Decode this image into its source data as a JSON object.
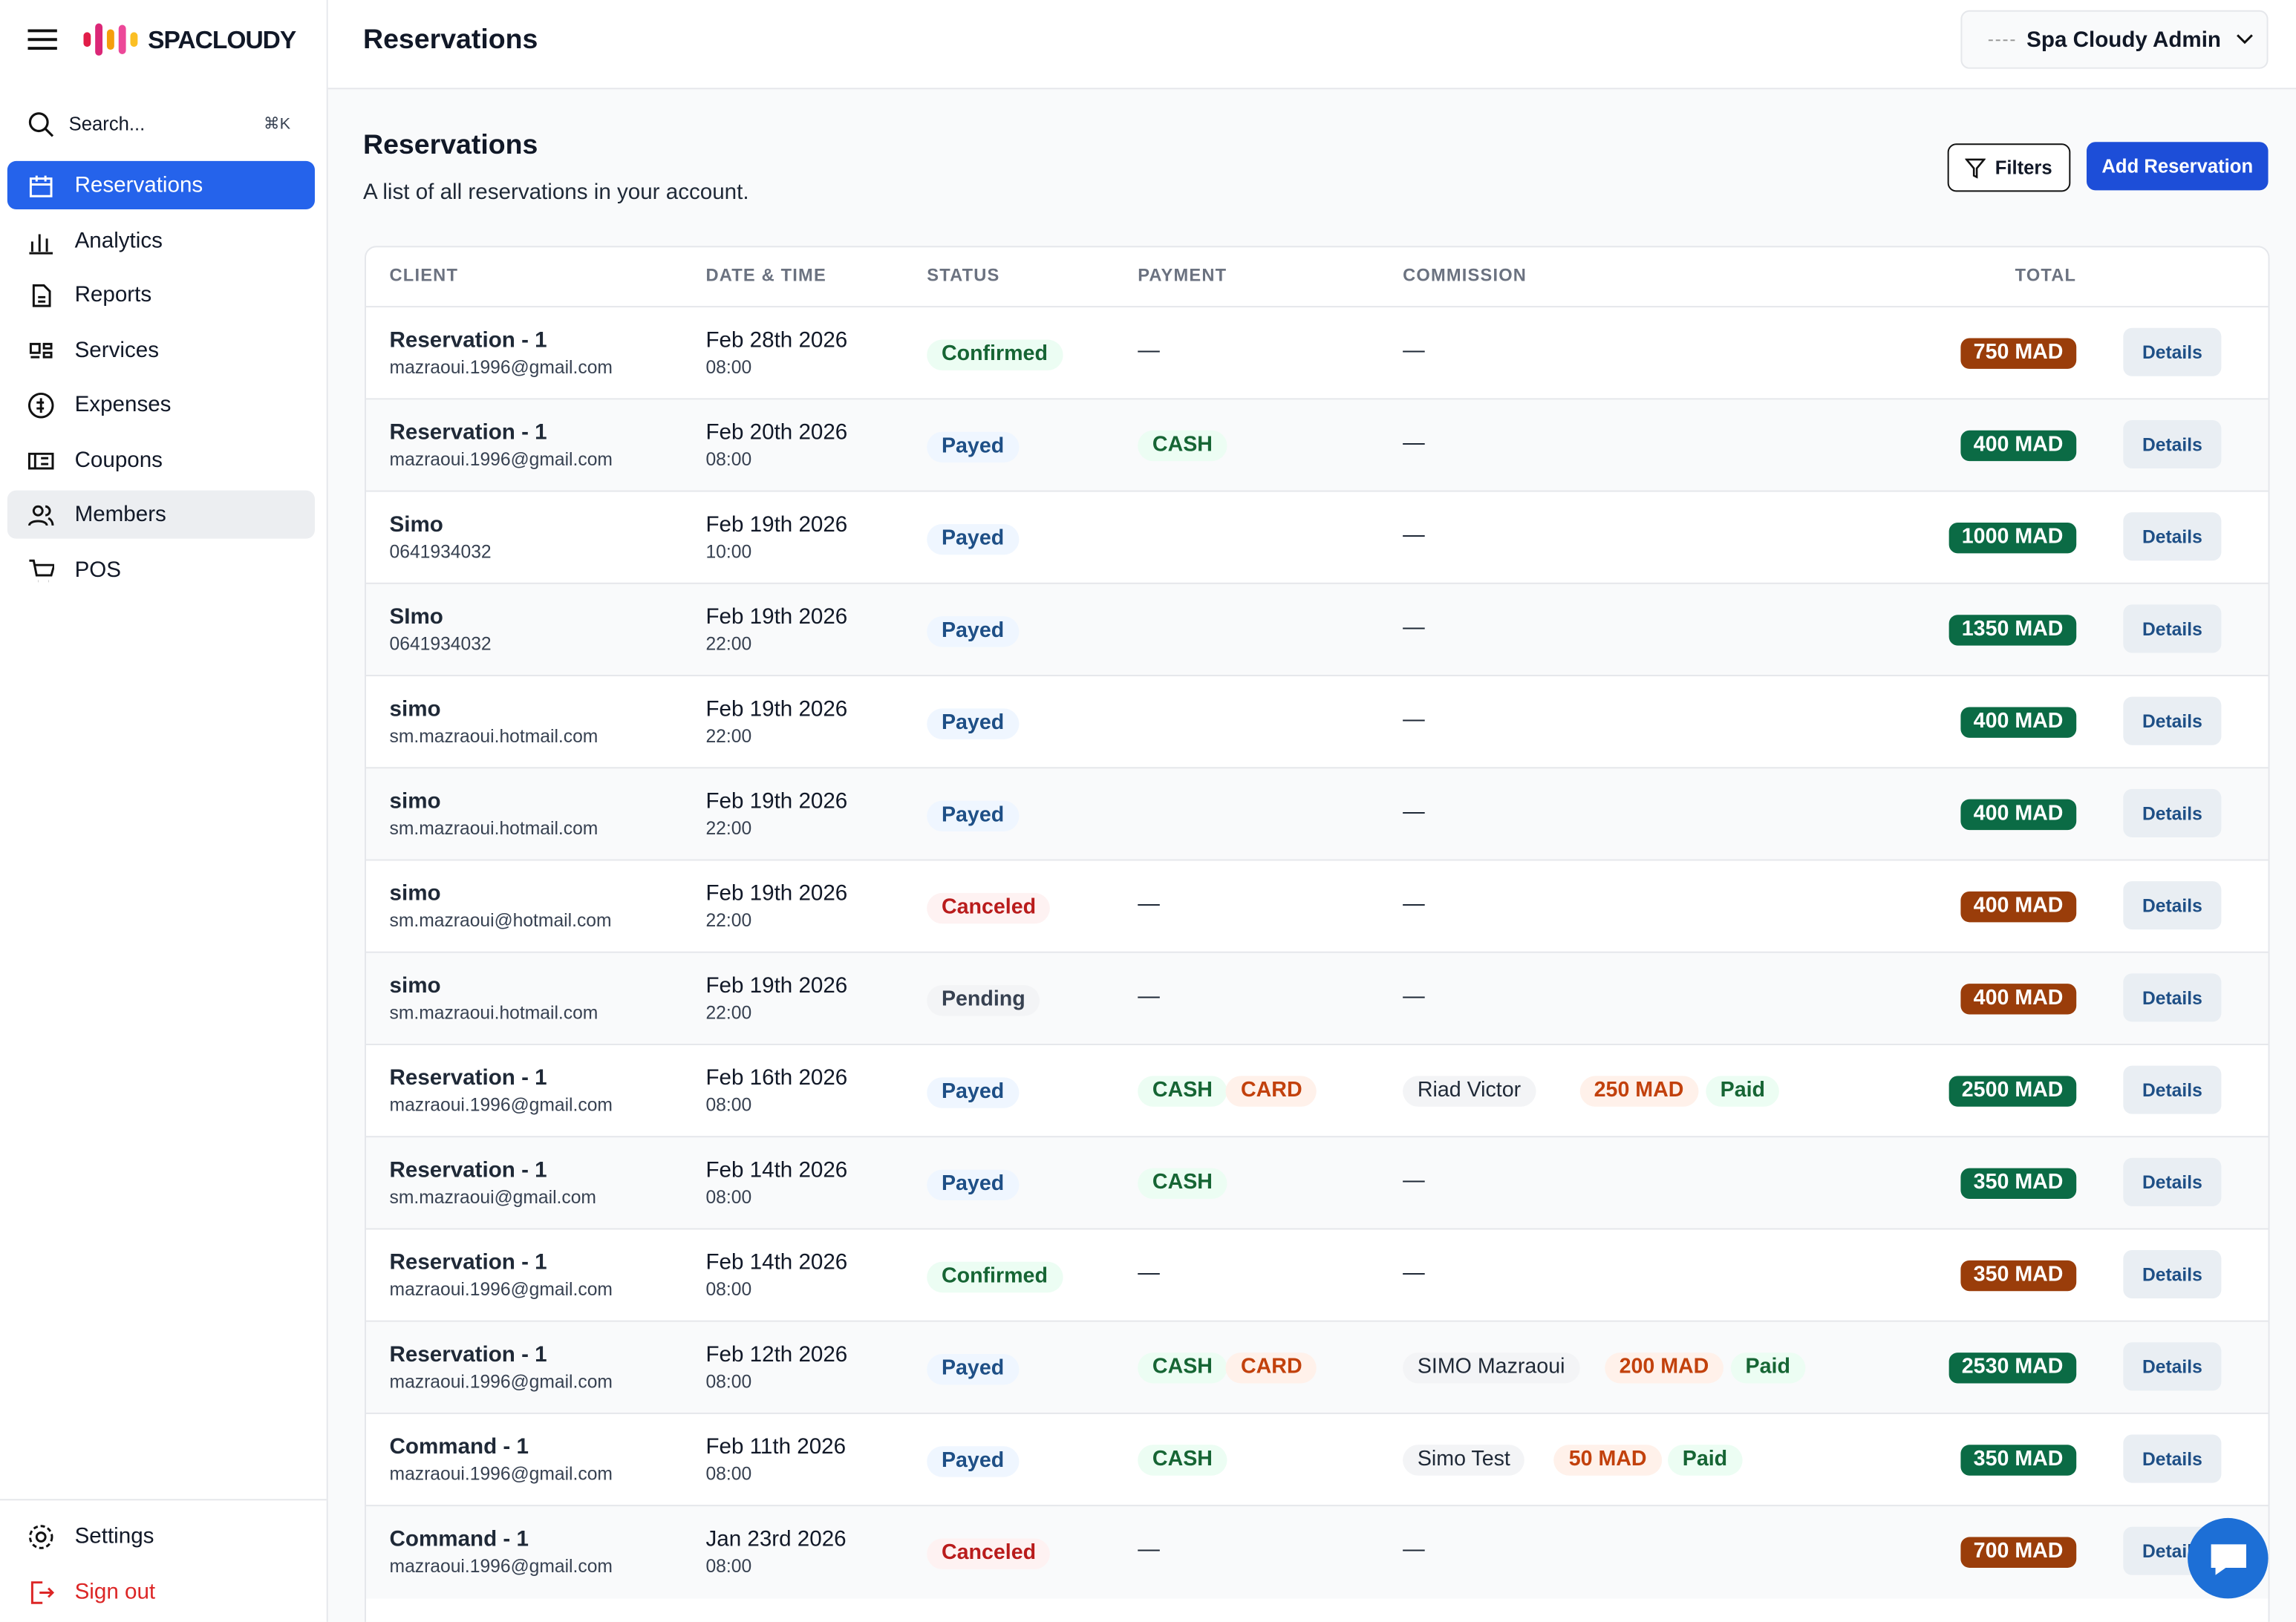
{
  "sidebar": {
    "brand": "SPACLOUDY",
    "search": "Search...",
    "shortcut": "⌘K",
    "nav": [
      "Reservations",
      "Analytics",
      "Reports",
      "Services",
      "Expenses",
      "Coupons",
      "Members",
      "POS"
    ],
    "settings": "Settings",
    "signout": "Sign out"
  },
  "header": {
    "title": "Reservations",
    "user": "Spa Cloudy Admin"
  },
  "page": {
    "title": "Reservations",
    "subtitle": "A list of all reservations in your account.",
    "filters": "Filters",
    "add": "Add Reservation"
  },
  "table": {
    "columns": [
      "CLIENT",
      "DATE & TIME",
      "STATUS",
      "PAYMENT",
      "COMMISSION",
      "TOTAL"
    ],
    "action": "Details",
    "rows": [
      {
        "client": "Reservation - 1",
        "contact": "mazraoui.1996@gmail.com",
        "date": "Feb 28th 2026",
        "time": "08:00",
        "status": "Confirmed",
        "payment": [
          "—"
        ],
        "commission": [
          "—"
        ],
        "total": "750 MAD"
      },
      {
        "client": "Reservation - 1",
        "contact": "mazraoui.1996@gmail.com",
        "date": "Feb 20th 2026",
        "time": "08:00",
        "status": "Payed",
        "payment": [
          "CASH"
        ],
        "commission": [
          "—"
        ],
        "total": "400 MAD"
      },
      {
        "client": "Simo",
        "contact": "0641934032",
        "date": "Feb 19th 2026",
        "time": "10:00",
        "status": "Payed",
        "payment": [],
        "commission": [
          "—"
        ],
        "total": "1000 MAD"
      },
      {
        "client": "SImo",
        "contact": "0641934032",
        "date": "Feb 19th 2026",
        "time": "22:00",
        "status": "Payed",
        "payment": [],
        "commission": [
          "—"
        ],
        "total": "1350 MAD"
      },
      {
        "client": "simo",
        "contact": "sm.mazraoui.hotmail.com",
        "date": "Feb 19th 2026",
        "time": "22:00",
        "status": "Payed",
        "payment": [],
        "commission": [
          "—"
        ],
        "total": "400 MAD"
      },
      {
        "client": "simo",
        "contact": "sm.mazraoui.hotmail.com",
        "date": "Feb 19th 2026",
        "time": "22:00",
        "status": "Payed",
        "payment": [],
        "commission": [
          "—"
        ],
        "total": "400 MAD"
      },
      {
        "client": "simo",
        "contact": "sm.mazraoui@hotmail.com",
        "date": "Feb 19th 2026",
        "time": "22:00",
        "status": "Canceled",
        "payment": [
          "—"
        ],
        "commission": [
          "—"
        ],
        "total": "400 MAD"
      },
      {
        "client": "simo",
        "contact": "sm.mazraoui.hotmail.com",
        "date": "Feb 19th 2026",
        "time": "22:00",
        "status": "Pending",
        "payment": [
          "—"
        ],
        "commission": [
          "—"
        ],
        "total": "400 MAD"
      },
      {
        "client": "Reservation - 1",
        "contact": "mazraoui.1996@gmail.com",
        "date": "Feb 16th 2026",
        "time": "08:00",
        "status": "Payed",
        "payment": [
          "CASH",
          "CARD"
        ],
        "commission": [
          "Riad Victor",
          "250 MAD",
          "Paid"
        ],
        "total": "2500 MAD"
      },
      {
        "client": "Reservation - 1",
        "contact": "sm.mazraoui@gmail.com",
        "date": "Feb 14th 2026",
        "time": "08:00",
        "status": "Payed",
        "payment": [
          "CASH"
        ],
        "commission": [
          "—"
        ],
        "total": "350 MAD"
      },
      {
        "client": "Reservation - 1",
        "contact": "mazraoui.1996@gmail.com",
        "date": "Feb 14th 2026",
        "time": "08:00",
        "status": "Confirmed",
        "payment": [
          "—"
        ],
        "commission": [
          "—"
        ],
        "total": "350 MAD"
      },
      {
        "client": "Reservation - 1",
        "contact": "mazraoui.1996@gmail.com",
        "date": "Feb 12th 2026",
        "time": "08:00",
        "status": "Payed",
        "payment": [
          "CASH",
          "CARD"
        ],
        "commission": [
          "SIMO Mazraoui",
          "200 MAD",
          "Paid"
        ],
        "total": "2530 MAD"
      },
      {
        "client": "Command - 1",
        "contact": "mazraoui.1996@gmail.com",
        "date": "Feb 11th 2026",
        "time": "08:00",
        "status": "Payed",
        "payment": [
          "CASH"
        ],
        "commission": [
          "Simo Test",
          "50 MAD",
          "Paid"
        ],
        "total": "350 MAD"
      },
      {
        "client": "Command - 1",
        "contact": "mazraoui.1996@gmail.com",
        "date": "Jan 23rd 2026",
        "time": "08:00",
        "status": "Canceled",
        "payment": [
          "—"
        ],
        "commission": [
          "—"
        ],
        "total": "700 MAD"
      }
    ]
  }
}
